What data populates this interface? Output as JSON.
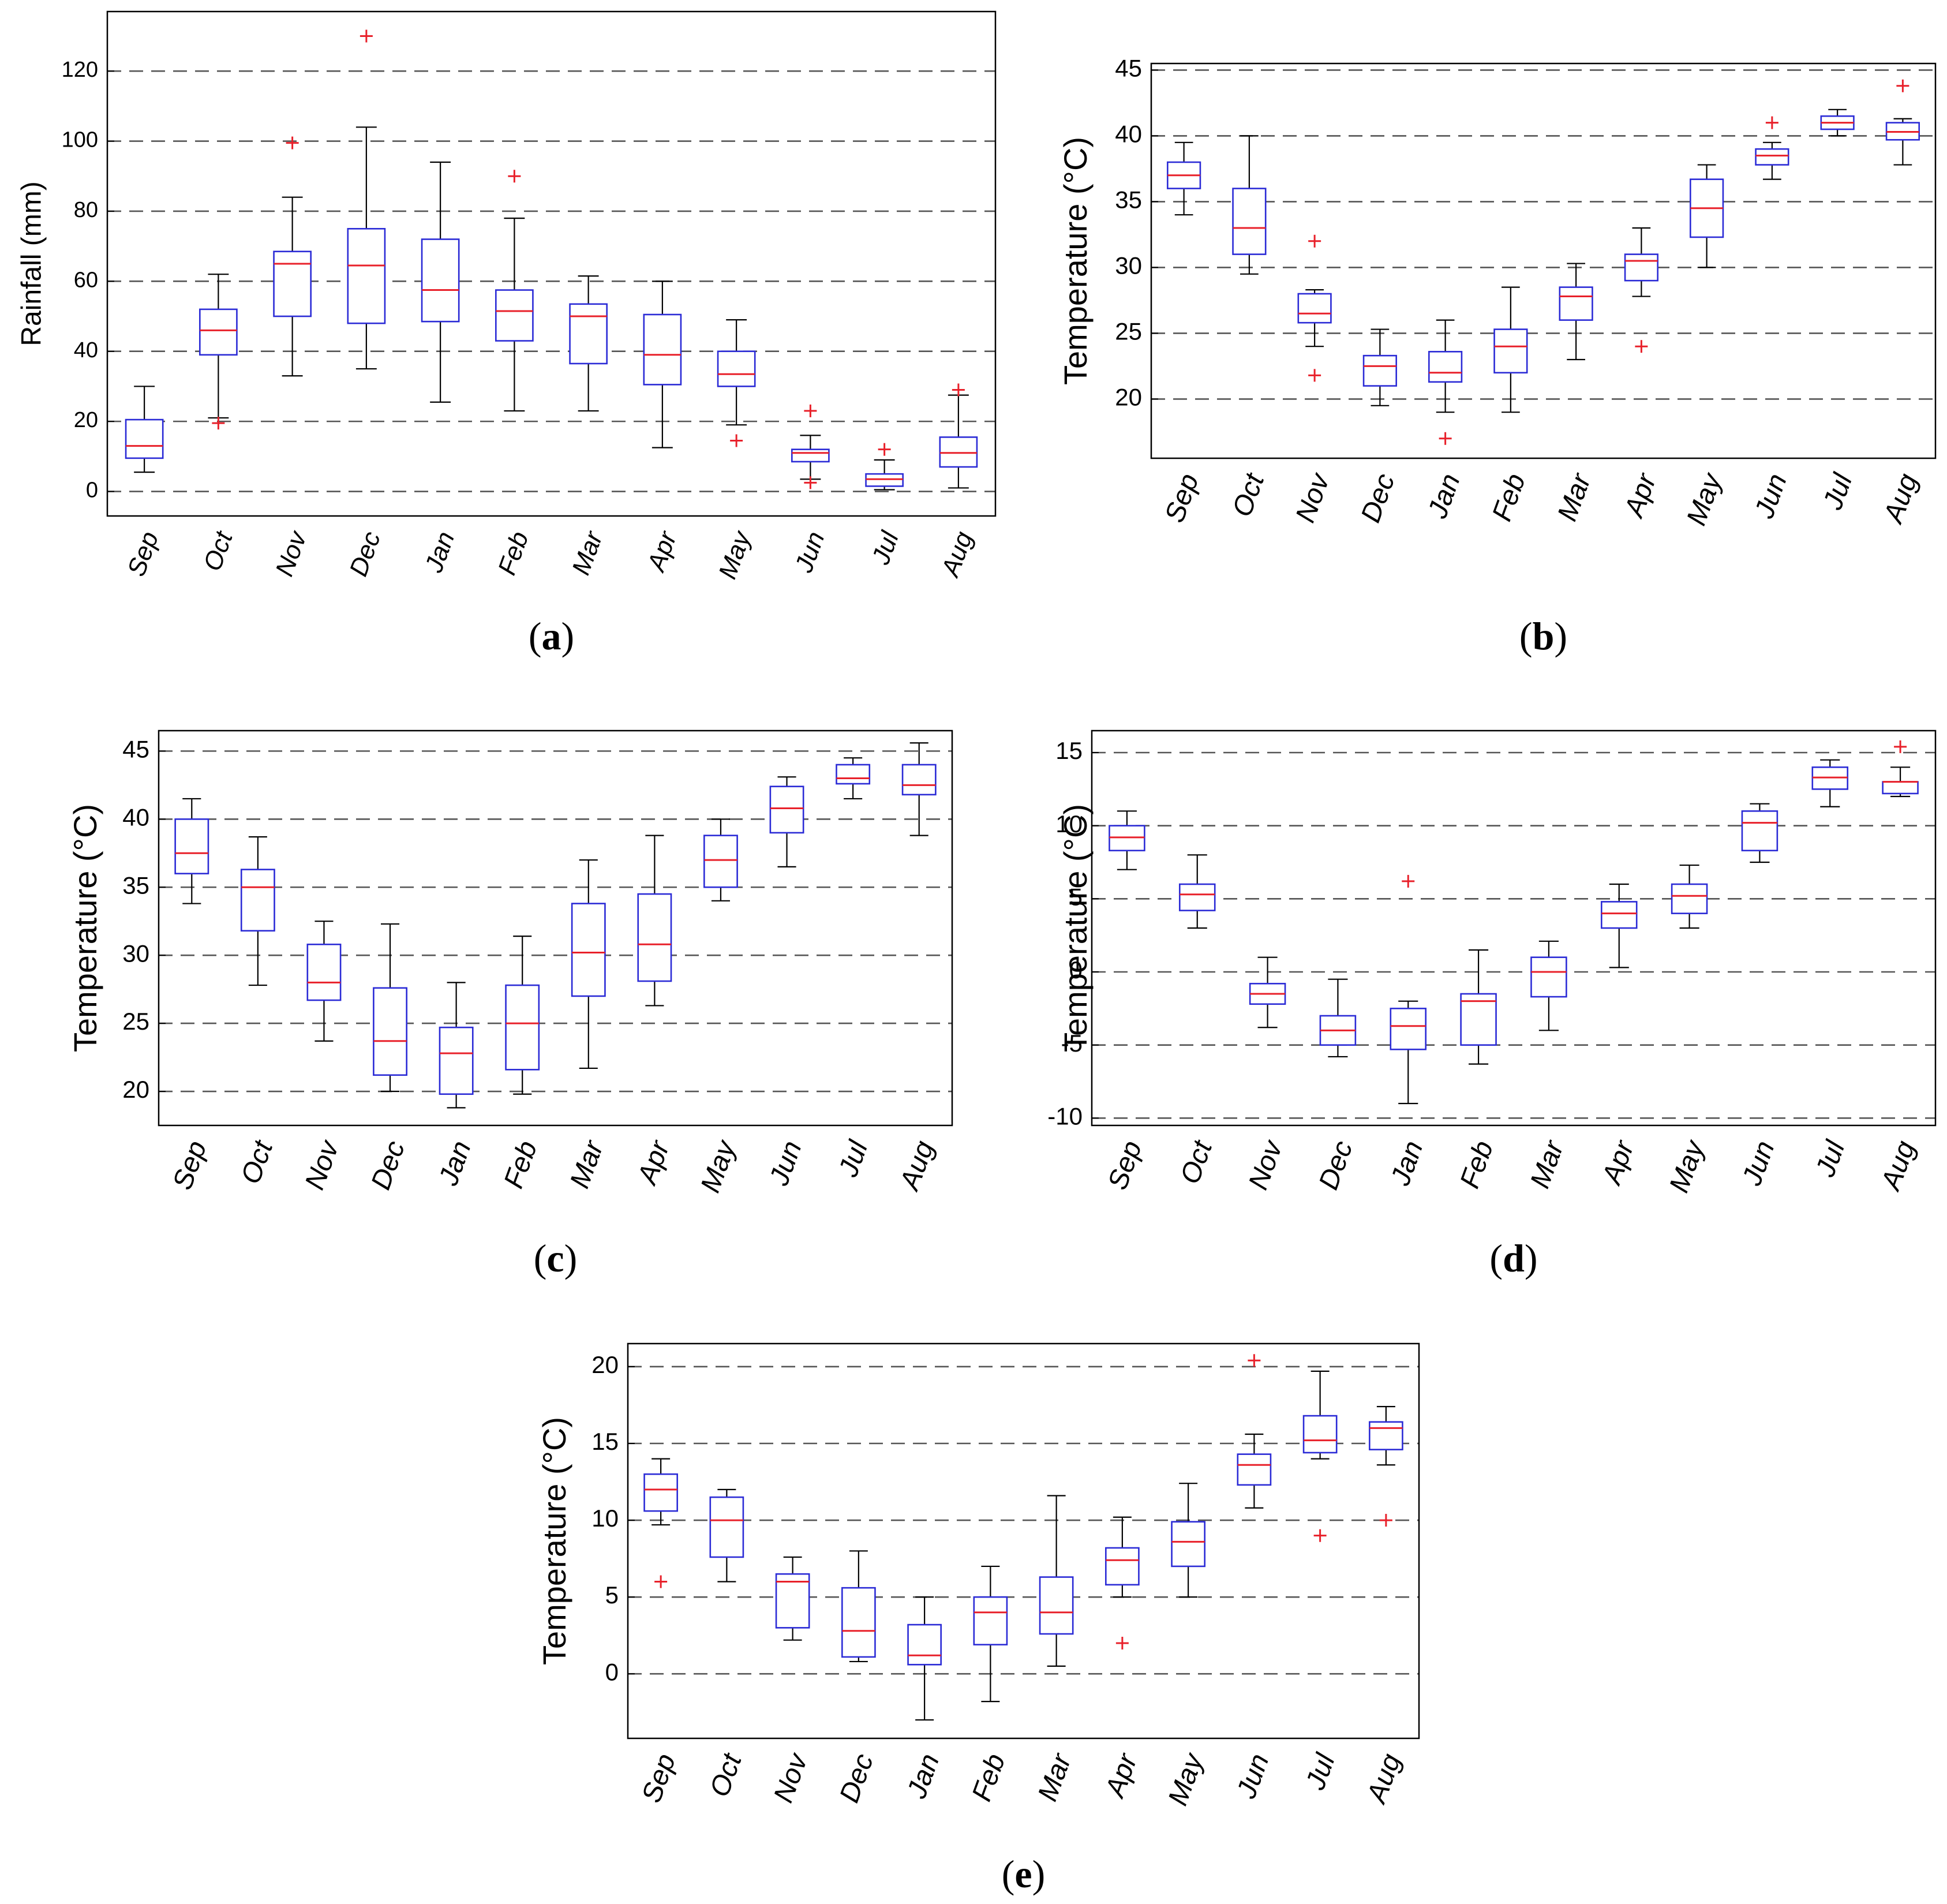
{
  "figure": {
    "panel_labels": [
      "(a)",
      "(b)",
      "(c)",
      "(d)",
      "(e)"
    ]
  },
  "colors": {
    "box": "#2b2bd6",
    "median": "#e8202a",
    "outlier": "#e8202a",
    "whisker": "#000000",
    "grid": "#555555",
    "axis": "#000000"
  },
  "chart_data": [
    {
      "type": "box",
      "panel": "(a)",
      "title": "",
      "xlabel": "",
      "ylabel": "Rainfall (mm)",
      "ylim": [
        -7,
        137
      ],
      "yticks": [
        0,
        20,
        40,
        60,
        80,
        100,
        120
      ],
      "grid": "horizontal dashed",
      "categories": [
        "Sep",
        "Oct",
        "Nov",
        "Dec",
        "Jan",
        "Feb",
        "Mar",
        "Apr",
        "May",
        "Jun",
        "Jul",
        "Aug"
      ],
      "boxes": [
        {
          "min": 5.5,
          "q1": 9.5,
          "median": 13,
          "q3": 20.5,
          "max": 30,
          "outliers": []
        },
        {
          "min": 21,
          "q1": 39,
          "median": 46,
          "q3": 52,
          "max": 62,
          "outliers": [
            19.5
          ]
        },
        {
          "min": 33,
          "q1": 50,
          "median": 65,
          "q3": 68.5,
          "max": 84,
          "outliers": [
            99.5
          ]
        },
        {
          "min": 35,
          "q1": 48,
          "median": 64.5,
          "q3": 75,
          "max": 104,
          "outliers": [
            130
          ]
        },
        {
          "min": 25.5,
          "q1": 48.5,
          "median": 57.5,
          "q3": 72,
          "max": 94,
          "outliers": []
        },
        {
          "min": 23,
          "q1": 43,
          "median": 51.5,
          "q3": 57.5,
          "max": 78,
          "outliers": [
            90
          ]
        },
        {
          "min": 23,
          "q1": 36.5,
          "median": 50,
          "q3": 53.5,
          "max": 61.5,
          "outliers": []
        },
        {
          "min": 12.5,
          "q1": 30.5,
          "median": 39,
          "q3": 50.5,
          "max": 60,
          "outliers": []
        },
        {
          "min": 19,
          "q1": 30,
          "median": 33.5,
          "q3": 40,
          "max": 49,
          "outliers": [
            14.5
          ]
        },
        {
          "min": 3.5,
          "q1": 8.5,
          "median": 11,
          "q3": 12,
          "max": 16,
          "outliers": [
            23,
            2.5
          ]
        },
        {
          "min": 0.5,
          "q1": 1.5,
          "median": 3.5,
          "q3": 5,
          "max": 9,
          "outliers": [
            12
          ]
        },
        {
          "min": 1,
          "q1": 7,
          "median": 11,
          "q3": 15.5,
          "max": 27.5,
          "outliers": [
            29
          ]
        }
      ]
    },
    {
      "type": "box",
      "panel": "(b)",
      "title": "",
      "xlabel": "",
      "ylabel": "Temperature (°C)",
      "ylim": [
        15.5,
        45.5
      ],
      "yticks": [
        20,
        25,
        30,
        35,
        40,
        45
      ],
      "grid": "horizontal dashed",
      "categories": [
        "Sep",
        "Oct",
        "Nov",
        "Dec",
        "Jan",
        "Feb",
        "Mar",
        "Apr",
        "May",
        "Jun",
        "Jul",
        "Aug"
      ],
      "boxes": [
        {
          "min": 34,
          "q1": 36,
          "median": 37,
          "q3": 38,
          "max": 39.5,
          "outliers": []
        },
        {
          "min": 29.5,
          "q1": 31,
          "median": 33,
          "q3": 36,
          "max": 40,
          "outliers": []
        },
        {
          "min": 24,
          "q1": 25.8,
          "median": 26.5,
          "q3": 28,
          "max": 28.3,
          "outliers": [
            32,
            21.8
          ]
        },
        {
          "min": 19.5,
          "q1": 21,
          "median": 22.5,
          "q3": 23.3,
          "max": 25.3,
          "outliers": []
        },
        {
          "min": 19,
          "q1": 21.3,
          "median": 22,
          "q3": 23.6,
          "max": 26,
          "outliers": [
            17
          ]
        },
        {
          "min": 19,
          "q1": 22,
          "median": 24,
          "q3": 25.3,
          "max": 28.5,
          "outliers": []
        },
        {
          "min": 23,
          "q1": 26,
          "median": 27.8,
          "q3": 28.5,
          "max": 30.3,
          "outliers": []
        },
        {
          "min": 27.8,
          "q1": 29,
          "median": 30.5,
          "q3": 31,
          "max": 33,
          "outliers": [
            24
          ]
        },
        {
          "min": 30,
          "q1": 32.3,
          "median": 34.5,
          "q3": 36.7,
          "max": 37.8,
          "outliers": []
        },
        {
          "min": 36.7,
          "q1": 37.8,
          "median": 38.5,
          "q3": 39,
          "max": 39.5,
          "outliers": [
            41
          ]
        },
        {
          "min": 40,
          "q1": 40.5,
          "median": 41,
          "q3": 41.5,
          "max": 42,
          "outliers": []
        },
        {
          "min": 37.8,
          "q1": 39.7,
          "median": 40.3,
          "q3": 41,
          "max": 41.3,
          "outliers": [
            43.8
          ]
        }
      ]
    },
    {
      "type": "box",
      "panel": "(c)",
      "title": "",
      "xlabel": "",
      "ylabel": "Temperature (°C)",
      "ylim": [
        17.5,
        46.5
      ],
      "yticks": [
        20,
        25,
        30,
        35,
        40,
        45
      ],
      "grid": "horizontal dashed",
      "categories": [
        "Sep",
        "Oct",
        "Nov",
        "Dec",
        "Jan",
        "Feb",
        "Mar",
        "Apr",
        "May",
        "Jun",
        "Jul",
        "Aug"
      ],
      "boxes": [
        {
          "min": 33.8,
          "q1": 36,
          "median": 37.5,
          "q3": 40,
          "max": 41.5,
          "outliers": []
        },
        {
          "min": 27.8,
          "q1": 31.8,
          "median": 35,
          "q3": 36.3,
          "max": 38.7,
          "outliers": []
        },
        {
          "min": 23.7,
          "q1": 26.7,
          "median": 28,
          "q3": 30.8,
          "max": 32.5,
          "outliers": []
        },
        {
          "min": 20,
          "q1": 21.2,
          "median": 23.7,
          "q3": 27.6,
          "max": 32.3,
          "outliers": []
        },
        {
          "min": 18.8,
          "q1": 19.8,
          "median": 22.8,
          "q3": 24.7,
          "max": 28,
          "outliers": []
        },
        {
          "min": 19.8,
          "q1": 21.6,
          "median": 25,
          "q3": 27.8,
          "max": 31.4,
          "outliers": []
        },
        {
          "min": 21.7,
          "q1": 27,
          "median": 30.2,
          "q3": 33.8,
          "max": 37,
          "outliers": []
        },
        {
          "min": 26.3,
          "q1": 28.1,
          "median": 30.8,
          "q3": 34.5,
          "max": 38.8,
          "outliers": []
        },
        {
          "min": 34,
          "q1": 35,
          "median": 37,
          "q3": 38.8,
          "max": 40,
          "outliers": []
        },
        {
          "min": 36.5,
          "q1": 39,
          "median": 40.8,
          "q3": 42.4,
          "max": 43.1,
          "outliers": []
        },
        {
          "min": 41.5,
          "q1": 42.6,
          "median": 43,
          "q3": 44,
          "max": 44.5,
          "outliers": []
        },
        {
          "min": 38.8,
          "q1": 41.8,
          "median": 42.5,
          "q3": 44,
          "max": 45.6,
          "outliers": []
        }
      ]
    },
    {
      "type": "box",
      "panel": "(d)",
      "title": "",
      "xlabel": "",
      "ylabel": "Temperature (°C)",
      "ylim": [
        -10.5,
        16.5
      ],
      "yticks": [
        -10,
        -5,
        0,
        5,
        10,
        15
      ],
      "grid": "horizontal dashed",
      "categories": [
        "Sep",
        "Oct",
        "Nov",
        "Dec",
        "Jan",
        "Feb",
        "Mar",
        "Apr",
        "May",
        "Jun",
        "Jul",
        "Aug"
      ],
      "boxes": [
        {
          "min": 7,
          "q1": 8.3,
          "median": 9.2,
          "q3": 10,
          "max": 11,
          "outliers": []
        },
        {
          "min": 3,
          "q1": 4.2,
          "median": 5.3,
          "q3": 6,
          "max": 8,
          "outliers": []
        },
        {
          "min": -3.8,
          "q1": -2.2,
          "median": -1.5,
          "q3": -0.8,
          "max": 1,
          "outliers": []
        },
        {
          "min": -5.8,
          "q1": -5,
          "median": -4,
          "q3": -3,
          "max": -0.5,
          "outliers": []
        },
        {
          "min": -9,
          "q1": -5.3,
          "median": -3.7,
          "q3": -2.5,
          "max": -2,
          "outliers": [
            6.2
          ]
        },
        {
          "min": -6.3,
          "q1": -5,
          "median": -2,
          "q3": -1.5,
          "max": 1.5,
          "outliers": []
        },
        {
          "min": -4,
          "q1": -1.7,
          "median": 0,
          "q3": 1,
          "max": 2.1,
          "outliers": []
        },
        {
          "min": 0.3,
          "q1": 3,
          "median": 4,
          "q3": 4.8,
          "max": 6,
          "outliers": []
        },
        {
          "min": 3,
          "q1": 4,
          "median": 5.2,
          "q3": 6,
          "max": 7.3,
          "outliers": []
        },
        {
          "min": 7.5,
          "q1": 8.3,
          "median": 10.2,
          "q3": 11,
          "max": 11.5,
          "outliers": []
        },
        {
          "min": 11.3,
          "q1": 12.5,
          "median": 13.3,
          "q3": 14,
          "max": 14.5,
          "outliers": []
        },
        {
          "min": 12,
          "q1": 12.2,
          "median": 13,
          "q3": 13,
          "max": 14,
          "outliers": [
            15.4
          ]
        }
      ]
    },
    {
      "type": "box",
      "panel": "(e)",
      "title": "",
      "xlabel": "",
      "ylabel": "Temperature (°C)",
      "ylim": [
        -4.2,
        21.5
      ],
      "yticks": [
        0,
        5,
        10,
        15,
        20
      ],
      "grid": "horizontal dashed",
      "categories": [
        "Sep",
        "Oct",
        "Nov",
        "Dec",
        "Jan",
        "Feb",
        "Mar",
        "Apr",
        "May",
        "Jun",
        "Jul",
        "Aug"
      ],
      "boxes": [
        {
          "min": 9.7,
          "q1": 10.6,
          "median": 12,
          "q3": 13,
          "max": 14,
          "outliers": [
            6
          ]
        },
        {
          "min": 6,
          "q1": 7.6,
          "median": 10,
          "q3": 11.5,
          "max": 12,
          "outliers": []
        },
        {
          "min": 2.2,
          "q1": 3,
          "median": 6,
          "q3": 6.5,
          "max": 7.6,
          "outliers": []
        },
        {
          "min": 0.8,
          "q1": 1.1,
          "median": 2.8,
          "q3": 5.6,
          "max": 8,
          "outliers": []
        },
        {
          "min": -3,
          "q1": 0.6,
          "median": 1.2,
          "q3": 3.2,
          "max": 5,
          "outliers": []
        },
        {
          "min": -1.8,
          "q1": 1.9,
          "median": 4,
          "q3": 5,
          "max": 7,
          "outliers": []
        },
        {
          "min": 0.5,
          "q1": 2.6,
          "median": 4,
          "q3": 6.3,
          "max": 11.6,
          "outliers": []
        },
        {
          "min": 5,
          "q1": 5.8,
          "median": 7.4,
          "q3": 8.2,
          "max": 10.2,
          "outliers": [
            2
          ]
        },
        {
          "min": 5,
          "q1": 7,
          "median": 8.6,
          "q3": 9.9,
          "max": 12.4,
          "outliers": []
        },
        {
          "min": 10.8,
          "q1": 12.3,
          "median": 13.6,
          "q3": 14.3,
          "max": 15.6,
          "outliers": [
            20.4
          ]
        },
        {
          "min": 14,
          "q1": 14.4,
          "median": 15.2,
          "q3": 16.8,
          "max": 19.7,
          "outliers": [
            9
          ]
        },
        {
          "min": 13.6,
          "q1": 14.6,
          "median": 16,
          "q3": 16.4,
          "max": 17.4,
          "outliers": [
            10
          ]
        }
      ]
    }
  ]
}
